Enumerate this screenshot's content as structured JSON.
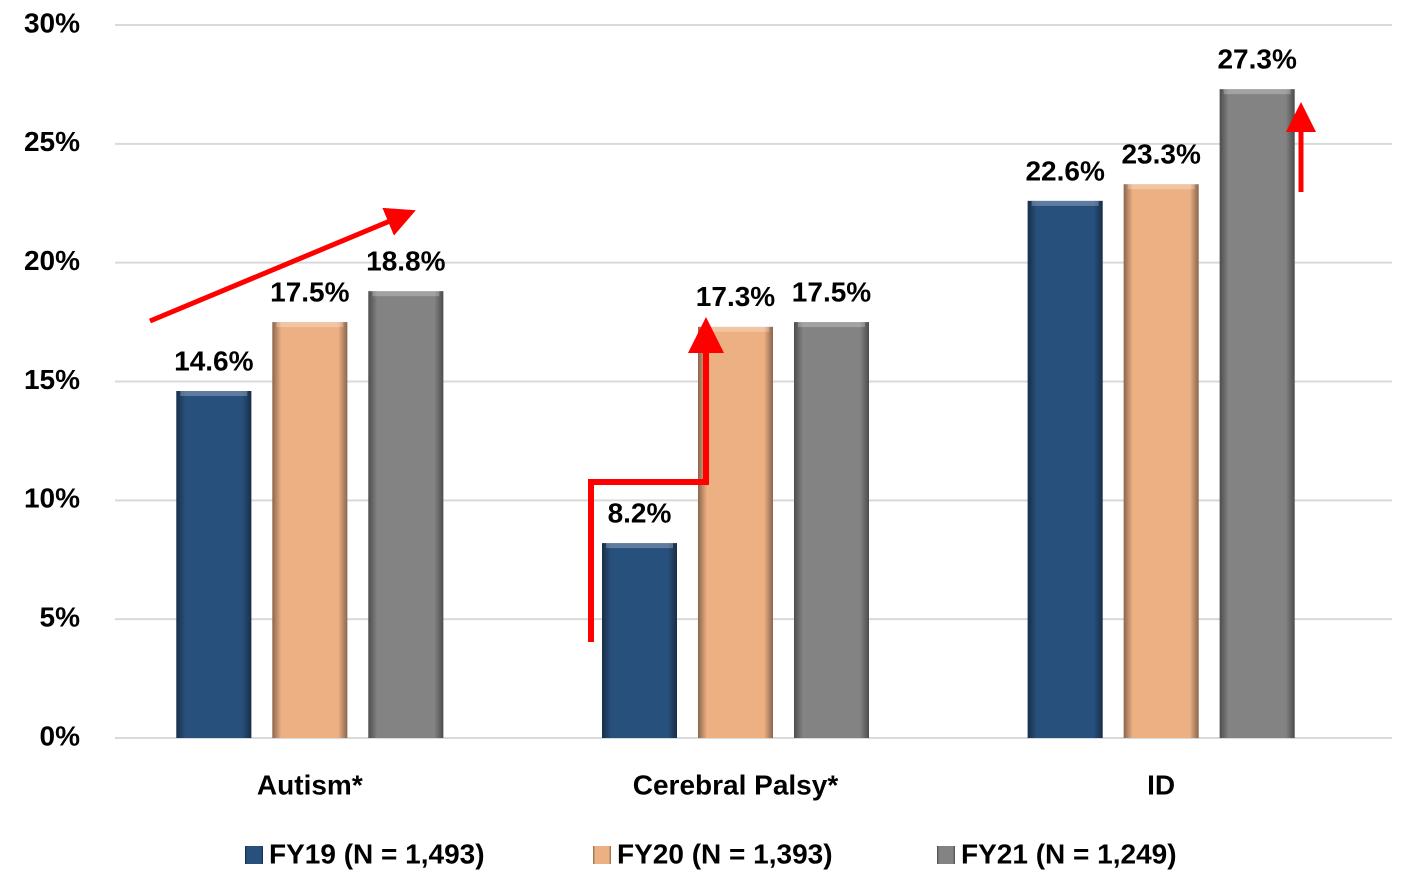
{
  "chart_data": {
    "type": "bar",
    "categories": [
      "Autism*",
      "Cerebral Palsy*",
      "ID"
    ],
    "series": [
      {
        "name": "FY19 (N = 1,493)",
        "color": "#2a5482",
        "values": [
          14.6,
          8.2,
          22.6
        ],
        "value_labels": [
          "14.6%",
          "8.2%",
          "22.6%"
        ]
      },
      {
        "name": "FY20 (N = 1,393)",
        "color": "#f9b98a",
        "values": [
          17.5,
          17.3,
          23.3
        ],
        "value_labels": [
          "17.5%",
          "17.3%",
          "23.3%"
        ]
      },
      {
        "name": "FY21 (N = 1,249)",
        "color": "#8a8a8a",
        "values": [
          18.8,
          17.5,
          27.3
        ],
        "value_labels": [
          "18.8%",
          "17.5%",
          "27.3%"
        ]
      }
    ],
    "ylim": [
      0,
      30
    ],
    "yticks": [
      {
        "value": 0,
        "label": "0%"
      },
      {
        "value": 5,
        "label": "5%"
      },
      {
        "value": 10,
        "label": "10%"
      },
      {
        "value": 15,
        "label": "15%"
      },
      {
        "value": 20,
        "label": "20%"
      },
      {
        "value": 25,
        "label": "25%"
      },
      {
        "value": 30,
        "label": "30%"
      }
    ],
    "grid": true,
    "legend": "bottom"
  }
}
